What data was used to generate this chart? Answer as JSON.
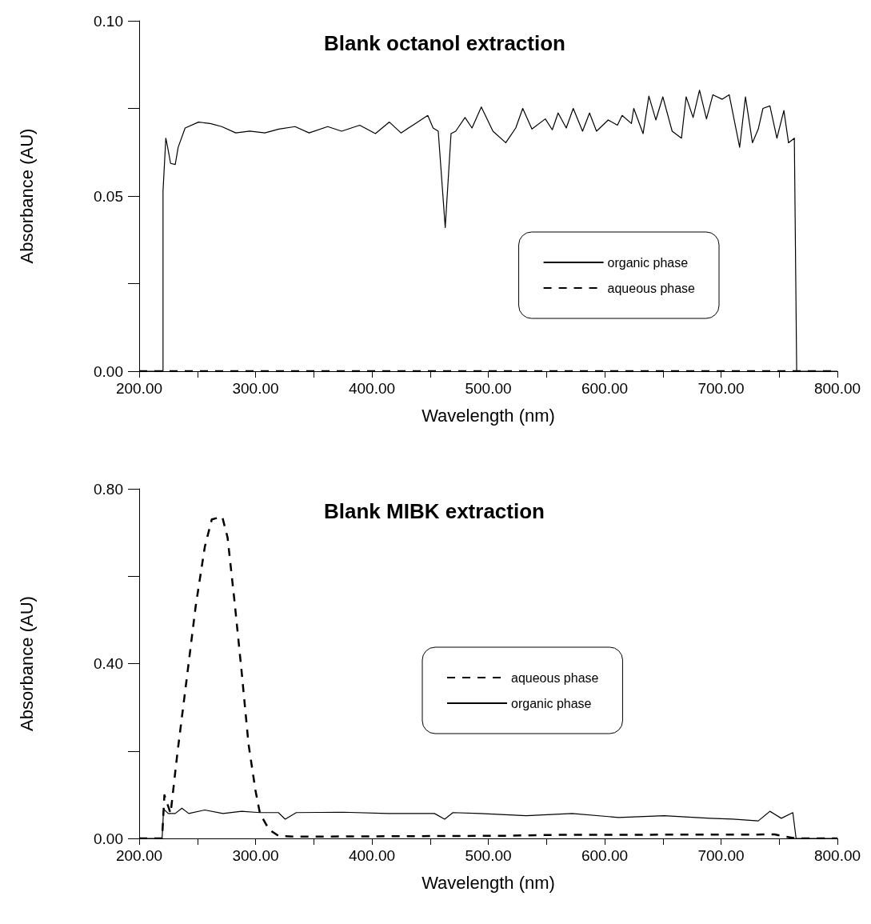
{
  "chart_data": [
    {
      "type": "line",
      "title": "Blank octanol extraction",
      "xlabel": "Wavelength (nm)",
      "ylabel": "Absorbance (AU)",
      "xlim": [
        200,
        800
      ],
      "ylim": [
        0,
        0.1
      ],
      "xticks": [
        {
          "value": 200,
          "label": "200.00"
        },
        {
          "value": 250,
          "label": null
        },
        {
          "value": 300,
          "label": "300.00"
        },
        {
          "value": 350,
          "label": null
        },
        {
          "value": 400,
          "label": "400.00"
        },
        {
          "value": 450,
          "label": null
        },
        {
          "value": 500,
          "label": "500.00"
        },
        {
          "value": 550,
          "label": null
        },
        {
          "value": 600,
          "label": "600.00"
        },
        {
          "value": 650,
          "label": null
        },
        {
          "value": 700,
          "label": "700.00"
        },
        {
          "value": 750,
          "label": null
        },
        {
          "value": 800,
          "label": "800.00"
        }
      ],
      "yticks": [
        {
          "value": 0,
          "label": "0.00"
        },
        {
          "value": 0.025,
          "label": null
        },
        {
          "value": 0.05,
          "label": "0.05"
        },
        {
          "value": 0.075,
          "label": null
        },
        {
          "value": 0.1,
          "label": "0.10"
        }
      ],
      "legend": "right",
      "grid": false,
      "marker": "none",
      "series": [
        {
          "name": "organic phase",
          "color": "#000000",
          "line_style": "solid",
          "x": [
            200,
            220.5,
            220.5,
            222.9,
            224.5,
            227,
            231,
            233.5,
            239.5,
            251,
            261,
            271,
            283,
            295,
            308,
            320,
            334,
            346,
            362,
            374,
            389.5,
            403,
            415,
            425,
            436,
            448,
            452.6,
            457,
            463,
            468,
            472,
            480,
            486,
            494,
            504,
            515,
            523.6,
            529.6,
            537.5,
            549,
            555,
            560,
            567,
            573,
            581,
            587,
            593,
            603,
            611,
            615,
            623,
            625,
            633,
            638,
            644,
            650,
            658,
            666,
            670,
            676,
            681.5,
            687.5,
            693,
            701,
            707,
            716,
            721,
            727,
            732,
            736,
            742,
            748,
            754,
            758,
            763,
            765,
            800
          ],
          "values": [
            0,
            0,
            0.0514,
            0.0665,
            0.0639,
            0.0593,
            0.059,
            0.0639,
            0.0694,
            0.0711,
            0.0707,
            0.0698,
            0.068,
            0.0685,
            0.068,
            0.0691,
            0.0698,
            0.068,
            0.0698,
            0.0685,
            0.0702,
            0.0678,
            0.0711,
            0.068,
            0.0704,
            0.073,
            0.0694,
            0.0685,
            0.041,
            0.0678,
            0.0685,
            0.0724,
            0.0694,
            0.0754,
            0.0685,
            0.0652,
            0.0694,
            0.075,
            0.0691,
            0.072,
            0.0689,
            0.0737,
            0.0694,
            0.075,
            0.0685,
            0.0737,
            0.0685,
            0.0717,
            0.0702,
            0.073,
            0.0707,
            0.075,
            0.0678,
            0.0785,
            0.0717,
            0.0783,
            0.0685,
            0.0665,
            0.0783,
            0.0724,
            0.0802,
            0.072,
            0.0789,
            0.0776,
            0.0789,
            0.0639,
            0.0783,
            0.0652,
            0.0691,
            0.075,
            0.0757,
            0.0665,
            0.0744,
            0.0652,
            0.0665,
            0,
            0
          ]
        },
        {
          "name": "aqueous phase",
          "color": "#000000",
          "line_style": "dashed",
          "x": [
            200,
            500,
            800
          ],
          "values": [
            0,
            0,
            0
          ]
        }
      ]
    },
    {
      "type": "line",
      "title": "Blank MIBK extraction",
      "xlabel": "Wavelength (nm)",
      "ylabel": "Absorbance (AU)",
      "xlim": [
        200,
        800
      ],
      "ylim": [
        0,
        0.8
      ],
      "xticks": [
        {
          "value": 200,
          "label": "200.00"
        },
        {
          "value": 250,
          "label": null
        },
        {
          "value": 300,
          "label": "300.00"
        },
        {
          "value": 350,
          "label": null
        },
        {
          "value": 400,
          "label": "400.00"
        },
        {
          "value": 450,
          "label": null
        },
        {
          "value": 500,
          "label": "500.00"
        },
        {
          "value": 550,
          "label": null
        },
        {
          "value": 600,
          "label": "600.00"
        },
        {
          "value": 650,
          "label": null
        },
        {
          "value": 700,
          "label": "700.00"
        },
        {
          "value": 750,
          "label": null
        },
        {
          "value": 800,
          "label": "800.00"
        }
      ],
      "yticks": [
        {
          "value": 0,
          "label": "0.00"
        },
        {
          "value": 0.2,
          "label": null
        },
        {
          "value": 0.4,
          "label": "0.40"
        },
        {
          "value": 0.6,
          "label": null
        },
        {
          "value": 0.8,
          "label": "0.80"
        }
      ],
      "legend": "center",
      "grid": false,
      "marker": "none",
      "series": [
        {
          "name": "aqueous phase",
          "color": "#000000",
          "line_style": "dashed",
          "x": [
            200,
            219.7,
            221.7,
            227,
            232.8,
            240.7,
            248.5,
            256.4,
            262.4,
            271.4,
            276,
            282,
            288,
            294,
            300,
            303.8,
            311.7,
            319.6,
            335,
            513,
            556,
            746,
            763.6,
            800
          ],
          "values": [
            0,
            0,
            0.099,
            0.057,
            0.194,
            0.362,
            0.53,
            0.667,
            0.73,
            0.736,
            0.688,
            0.541,
            0.383,
            0.215,
            0.109,
            0.057,
            0.02,
            0.006,
            0.004,
            0.006,
            0.008,
            0.009,
            0,
            0
          ]
        },
        {
          "name": "organic phase",
          "color": "#000000",
          "line_style": "solid",
          "x": [
            200,
            219.7,
            221,
            225,
            231,
            236.7,
            242.6,
            256.4,
            272,
            288,
            303.8,
            319.6,
            325.5,
            335,
            375,
            414,
            453.8,
            462.5,
            469.6,
            493,
            532.7,
            572,
            612,
            651,
            690.6,
            710,
            732,
            742,
            751.8,
            761.7,
            764.5,
            800
          ],
          "values": [
            0,
            0,
            0.067,
            0.057,
            0.057,
            0.069,
            0.057,
            0.065,
            0.057,
            0.062,
            0.059,
            0.059,
            0.044,
            0.059,
            0.06,
            0.057,
            0.057,
            0.044,
            0.059,
            0.057,
            0.052,
            0.057,
            0.048,
            0.052,
            0.046,
            0.044,
            0.04,
            0.062,
            0.046,
            0.059,
            0,
            0
          ]
        }
      ]
    }
  ]
}
